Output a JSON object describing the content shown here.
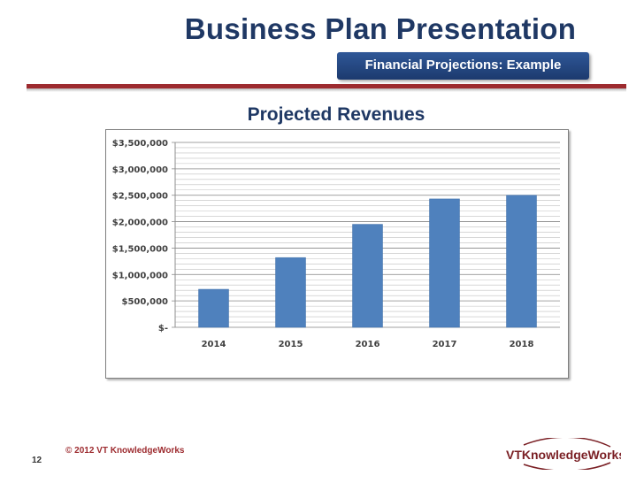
{
  "slide": {
    "title": "Business Plan Presentation",
    "subtitle": "Financial Projections: Example",
    "footer": "© 2012 VT KnowledgeWorks",
    "page_number": "12",
    "logo_text": "VTKnowledgeWorks"
  },
  "colors": {
    "title": "#1f3864",
    "bar": "#4f81bd",
    "accent_rule": "#9d2b2f"
  },
  "chart_data": {
    "type": "bar",
    "title": "Projected Revenues",
    "categories": [
      "2014",
      "2015",
      "2016",
      "2017",
      "2018"
    ],
    "values": [
      720000,
      1320000,
      1950000,
      2430000,
      2500000
    ],
    "ylim": [
      0,
      3500000
    ],
    "yticks": [
      0,
      500000,
      1000000,
      1500000,
      2000000,
      2500000,
      3000000,
      3500000
    ],
    "ytick_labels": [
      "$-",
      "$500,000",
      "$1,000,000",
      "$1,500,000",
      "$2,000,000",
      "$2,500,000",
      "$3,000,000",
      "$3,500,000"
    ],
    "grid": true,
    "legend": "none"
  }
}
